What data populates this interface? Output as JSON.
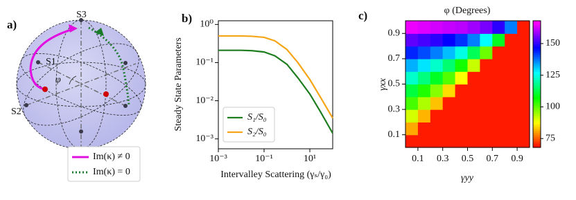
{
  "chart_data": [
    {
      "type": "sphere",
      "panel_label": "a)",
      "pole_labels": [
        "S3",
        "S1",
        "S2"
      ],
      "angle_label": "φ",
      "series": [
        {
          "name": "Im(κ) ≠ 0",
          "color": "#e010e0",
          "style": "solid"
        },
        {
          "name": "Im(κ) = 0",
          "color": "#1a7a2a",
          "style": "dotted"
        }
      ],
      "legend": "lower right"
    },
    {
      "type": "line",
      "panel_label": "b)",
      "xlabel": "Intervalley Scattering (γₛ/γ₀)",
      "ylabel": "Steady State Parameters",
      "xscale": "log",
      "yscale": "log",
      "x": [
        0.001,
        0.01,
        0.03,
        0.1,
        0.3,
        1,
        3,
        10,
        30,
        100
      ],
      "series": [
        {
          "name": "S₁/S₀",
          "color": "#1e7d1e",
          "values": [
            0.21,
            0.21,
            0.205,
            0.19,
            0.15,
            0.09,
            0.04,
            0.015,
            0.005,
            0.0014
          ]
        },
        {
          "name": "S₂/S₀",
          "color": "#f5a516",
          "values": [
            0.5,
            0.5,
            0.49,
            0.46,
            0.37,
            0.22,
            0.1,
            0.036,
            0.012,
            0.0035
          ]
        }
      ],
      "xlim": [
        0.001,
        100
      ],
      "ylim": [
        0.00055,
        1.25
      ],
      "xticks": [
        {
          "value": 0.001,
          "label": "10⁻³"
        },
        {
          "value": 0.1,
          "label": "10⁻¹"
        },
        {
          "value": 10,
          "label": "10¹"
        }
      ],
      "yticks": [
        {
          "value": 1,
          "label": "10⁰"
        },
        {
          "value": 0.1,
          "label": "10⁻¹"
        },
        {
          "value": 0.01,
          "label": "10⁻²"
        },
        {
          "value": 0.001,
          "label": "10⁻³"
        }
      ],
      "legend": "lower left"
    },
    {
      "type": "heatmap",
      "panel_label": "c)",
      "title": "φ (Degrees)",
      "xlabel": "γyy",
      "ylabel": "γxx",
      "x": [
        0.05,
        0.15,
        0.25,
        0.35,
        0.45,
        0.55,
        0.65,
        0.75,
        0.85,
        0.95
      ],
      "y": [
        0.05,
        0.15,
        0.25,
        0.35,
        0.45,
        0.55,
        0.65,
        0.75,
        0.85,
        0.95
      ],
      "z": [
        [
          70,
          70,
          70,
          70,
          70,
          70,
          70,
          70,
          70,
          70
        ],
        [
          81,
          70,
          70,
          70,
          70,
          70,
          70,
          70,
          70,
          70
        ],
        [
          91,
          82,
          70,
          70,
          70,
          70,
          70,
          70,
          70,
          70
        ],
        [
          102,
          94,
          83,
          70,
          70,
          70,
          70,
          70,
          70,
          70
        ],
        [
          112,
          105,
          97,
          85,
          70,
          70,
          70,
          70,
          70,
          70
        ],
        [
          123,
          117,
          110,
          101,
          88,
          70,
          70,
          70,
          70,
          70
        ],
        [
          133,
          129,
          123,
          116,
          106,
          92,
          70,
          70,
          70,
          70
        ],
        [
          144,
          141,
          137,
          132,
          125,
          114,
          99,
          70,
          70,
          70
        ],
        [
          154,
          152,
          150,
          147,
          143,
          137,
          127,
          110,
          70,
          70
        ],
        [
          165,
          164,
          163,
          162,
          161,
          159,
          156,
          150,
          137,
          70
        ]
      ],
      "xlim": [
        0,
        1
      ],
      "ylim": [
        0,
        1
      ],
      "xticks": [
        0.1,
        0.3,
        0.5,
        0.7,
        0.9
      ],
      "yticks": [
        0.1,
        0.3,
        0.5,
        0.7,
        0.9
      ],
      "colormap": "hsv",
      "clim": [
        68,
        168
      ],
      "cticks": [
        75,
        100,
        125,
        150
      ]
    }
  ]
}
